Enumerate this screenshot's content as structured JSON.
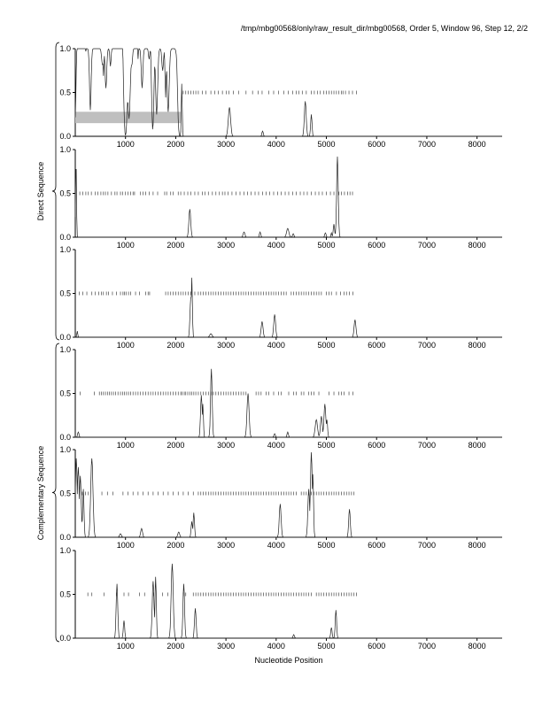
{
  "header": "/tmp/mbg00568/only/raw_result_dir/mbg00568, Order 5, Window 96, Step 12, 2/2",
  "xlabel": "Nucleotide Position",
  "group_labels": {
    "direct": "Direct Sequence",
    "complementary": "Complementary Sequence"
  },
  "chart_data": {
    "type": "line",
    "title": "/tmp/mbg00568/only/raw_result_dir/mbg00568, Order 5, Window 96, Step 12, 2/2",
    "xlabel": "Nucleotide Position",
    "ylabel_groups": [
      "Direct Sequence",
      "Complementary Sequence"
    ],
    "xlim": [
      0,
      8500
    ],
    "ylim": [
      0,
      1.0
    ],
    "xticks": [
      "1000",
      "2000",
      "3000",
      "4000",
      "5000",
      "6000",
      "7000",
      "8000"
    ],
    "yticks": [
      "0.0",
      "0.5",
      "1.0"
    ],
    "panels": [
      {
        "name": "direct-frame-1",
        "highlight": [
          0,
          2100,
          0.15,
          0.28
        ],
        "orf_marks": [
          2150,
          2200,
          2250,
          2300,
          2350,
          2400,
          2450,
          2530,
          2600,
          2700,
          2780,
          2850,
          2930,
          3010,
          3060,
          3150,
          3250,
          3400,
          3530,
          3640,
          3720,
          3850,
          3950,
          4050,
          4150,
          4240,
          4330,
          4400,
          4450,
          4520,
          4600,
          4700,
          4760,
          4820,
          4880,
          4950,
          5000,
          5050,
          5100,
          5150,
          5200,
          5250,
          5300,
          5330,
          5380,
          5450,
          5520,
          5600
        ],
        "peaks": [
          [
            30,
            0.35,
            30
          ],
          [
            2120,
            0.6,
            20
          ],
          [
            3070,
            0.33,
            50
          ],
          [
            3730,
            0.06,
            30
          ],
          [
            4580,
            0.4,
            40
          ],
          [
            4700,
            0.25,
            30
          ]
        ],
        "plateaus": [
          [
            120,
            1.0,
            170
          ],
          [
            380,
            1.0,
            330
          ],
          [
            760,
            1.0,
            360
          ],
          [
            1150,
            1.0,
            180
          ],
          [
            1380,
            1.0,
            230
          ],
          [
            1680,
            1.0,
            180
          ],
          [
            1920,
            1.0,
            190
          ]
        ],
        "dips": [
          [
            300,
            0.3,
            40
          ],
          [
            540,
            0.82,
            40
          ],
          [
            610,
            0.55,
            40
          ],
          [
            700,
            0.8,
            30
          ],
          [
            1070,
            0.2,
            60
          ],
          [
            1130,
            0.85,
            30
          ],
          [
            1330,
            0.55,
            40
          ],
          [
            1470,
            0.88,
            30
          ],
          [
            1620,
            0.25,
            50
          ],
          [
            1740,
            0.75,
            40
          ],
          [
            1850,
            0.28,
            50
          ],
          [
            2030,
            0.85,
            40
          ]
        ]
      },
      {
        "name": "direct-frame-2",
        "orf_marks": [
          90,
          150,
          210,
          260,
          320,
          400,
          450,
          510,
          560,
          600,
          650,
          720,
          790,
          830,
          900,
          940,
          1000,
          1050,
          1100,
          1150,
          1180,
          1300,
          1350,
          1400,
          1470,
          1550,
          1640,
          1780,
          1820,
          1900,
          1950,
          2050,
          2100,
          2170,
          2240,
          2300,
          2380,
          2450,
          2530,
          2580,
          2650,
          2730,
          2800,
          2870,
          2930,
          2980,
          3040,
          3120,
          3200,
          3280,
          3360,
          3430,
          3500,
          3580,
          3650,
          3730,
          3800,
          3870,
          3950,
          4030,
          4100,
          4180,
          4250,
          4330,
          4400,
          4480,
          4550,
          4620,
          4700,
          4780,
          4850,
          4920,
          5000,
          5080,
          5150,
          5250,
          5300,
          5360,
          5420,
          5470,
          5520
        ],
        "peaks": [
          [
            15,
            0.9,
            20
          ],
          [
            2280,
            0.32,
            40
          ],
          [
            3360,
            0.06,
            40
          ],
          [
            3680,
            0.06,
            30
          ],
          [
            4230,
            0.1,
            50
          ],
          [
            4340,
            0.04,
            30
          ],
          [
            4980,
            0.05,
            30
          ],
          [
            5100,
            0.05,
            20
          ],
          [
            5150,
            0.15,
            30
          ],
          [
            5220,
            0.92,
            35
          ]
        ],
        "plateaus": [],
        "dips": []
      },
      {
        "name": "direct-frame-3",
        "orf_marks": [
          80,
          150,
          230,
          330,
          400,
          470,
          520,
          560,
          620,
          660,
          740,
          820,
          900,
          950,
          980,
          1010,
          1060,
          1100,
          1200,
          1280,
          1400,
          1450,
          1480,
          1800,
          1850,
          1900,
          1950,
          2000,
          2050,
          2100,
          2150,
          2200,
          2250,
          2300,
          2380,
          2450,
          2500,
          2550,
          2600,
          2650,
          2700,
          2750,
          2800,
          2850,
          2900,
          2950,
          3000,
          3050,
          3100,
          3150,
          3200,
          3250,
          3300,
          3350,
          3400,
          3450,
          3500,
          3550,
          3600,
          3650,
          3700,
          3750,
          3800,
          3850,
          3900,
          3950,
          4000,
          4050,
          4100,
          4150,
          4200,
          4300,
          4350,
          4400,
          4450,
          4500,
          4550,
          4600,
          4650,
          4700,
          4750,
          4800,
          4850,
          4900,
          5000,
          5050,
          5100,
          5200,
          5280,
          5350,
          5400,
          5460,
          5530
        ],
        "peaks": [
          [
            40,
            0.07,
            20
          ],
          [
            2300,
            0.45,
            35
          ],
          [
            2320,
            0.68,
            25
          ],
          [
            2700,
            0.04,
            50
          ],
          [
            3720,
            0.18,
            40
          ],
          [
            3970,
            0.26,
            40
          ],
          [
            5570,
            0.2,
            40
          ]
        ],
        "plateaus": [],
        "dips": []
      },
      {
        "name": "complementary-frame-1",
        "orf_marks": [
          100,
          380,
          480,
          520,
          560,
          600,
          640,
          680,
          720,
          760,
          800,
          850,
          900,
          940,
          980,
          1020,
          1060,
          1100,
          1150,
          1200,
          1250,
          1300,
          1350,
          1400,
          1450,
          1500,
          1550,
          1600,
          1650,
          1700,
          1750,
          1800,
          1850,
          1900,
          1950,
          2000,
          2050,
          2100,
          2130,
          2170,
          2200,
          2240,
          2280,
          2320,
          2360,
          2400,
          2450,
          2500,
          2550,
          2600,
          2650,
          2700,
          2750,
          2800,
          2850,
          2900,
          2950,
          3000,
          3050,
          3100,
          3150,
          3200,
          3250,
          3300,
          3350,
          3400,
          3600,
          3650,
          3700,
          3800,
          3850,
          3950,
          4050,
          4100,
          4250,
          4350,
          4400,
          4500,
          4550,
          4650,
          4700,
          4750,
          4850,
          5050,
          5150,
          5250,
          5300,
          5350,
          5450,
          5530
        ],
        "peaks": [
          [
            60,
            0.06,
            30
          ],
          [
            2510,
            0.48,
            35
          ],
          [
            2540,
            0.38,
            25
          ],
          [
            2710,
            0.78,
            35
          ],
          [
            3440,
            0.5,
            45
          ],
          [
            3970,
            0.04,
            30
          ],
          [
            4230,
            0.06,
            30
          ],
          [
            4800,
            0.2,
            50
          ],
          [
            4900,
            0.24,
            40
          ],
          [
            4970,
            0.38,
            40
          ],
          [
            5010,
            0.2,
            30
          ]
        ],
        "plateaus": [],
        "dips": []
      },
      {
        "name": "complementary-frame-2",
        "orf_marks": [
          140,
          200,
          260,
          530,
          640,
          750,
          950,
          1050,
          1150,
          1250,
          1350,
          1450,
          1550,
          1650,
          1750,
          1850,
          1950,
          2050,
          2150,
          2250,
          2350,
          2450,
          2500,
          2550,
          2600,
          2650,
          2700,
          2750,
          2800,
          2850,
          2900,
          2950,
          3000,
          3050,
          3100,
          3150,
          3200,
          3250,
          3300,
          3350,
          3400,
          3450,
          3500,
          3550,
          3600,
          3650,
          3700,
          3750,
          3800,
          3850,
          3900,
          3950,
          4000,
          4050,
          4100,
          4150,
          4200,
          4250,
          4300,
          4350,
          4400,
          4500,
          4550,
          4600,
          4650,
          4700,
          4750,
          4800,
          4850,
          4900,
          4950,
          5000,
          5050,
          5100,
          5150,
          5200,
          5250,
          5300,
          5350,
          5400,
          5450,
          5500,
          5550
        ],
        "peaks": [
          [
            20,
            0.9,
            40
          ],
          [
            60,
            0.8,
            40
          ],
          [
            100,
            0.7,
            40
          ],
          [
            160,
            0.55,
            30
          ],
          [
            330,
            0.9,
            50
          ],
          [
            900,
            0.04,
            40
          ],
          [
            1320,
            0.1,
            40
          ],
          [
            2060,
            0.06,
            40
          ],
          [
            2320,
            0.18,
            30
          ],
          [
            2360,
            0.28,
            30
          ],
          [
            4080,
            0.38,
            40
          ],
          [
            4650,
            0.55,
            40
          ],
          [
            4700,
            0.97,
            40
          ],
          [
            4730,
            0.72,
            30
          ],
          [
            5460,
            0.32,
            35
          ]
        ],
        "plateaus": [],
        "dips": []
      },
      {
        "name": "complementary-frame-3",
        "orf_marks": [
          250,
          330,
          570,
          820,
          970,
          1060,
          1280,
          1380,
          1560,
          1740,
          1840,
          2150,
          2200,
          2350,
          2400,
          2450,
          2500,
          2550,
          2600,
          2650,
          2700,
          2750,
          2800,
          2850,
          2900,
          2950,
          3000,
          3050,
          3100,
          3150,
          3200,
          3250,
          3300,
          3350,
          3400,
          3450,
          3500,
          3550,
          3600,
          3650,
          3700,
          3750,
          3800,
          3850,
          3900,
          3950,
          4000,
          4050,
          4100,
          4150,
          4200,
          4250,
          4300,
          4350,
          4400,
          4450,
          4500,
          4550,
          4600,
          4650,
          4700,
          4800,
          4850,
          4900,
          4950,
          5000,
          5050,
          5100,
          5150,
          5200,
          5250,
          5300,
          5350,
          5400,
          5450,
          5500,
          5550,
          5600
        ],
        "peaks": [
          [
            830,
            0.62,
            35
          ],
          [
            970,
            0.2,
            30
          ],
          [
            1550,
            0.65,
            40
          ],
          [
            1600,
            0.7,
            30
          ],
          [
            1930,
            0.85,
            45
          ],
          [
            2160,
            0.62,
            35
          ],
          [
            2390,
            0.34,
            35
          ],
          [
            4350,
            0.04,
            30
          ],
          [
            5100,
            0.12,
            30
          ],
          [
            5190,
            0.32,
            30
          ]
        ],
        "plateaus": [],
        "dips": []
      }
    ]
  }
}
